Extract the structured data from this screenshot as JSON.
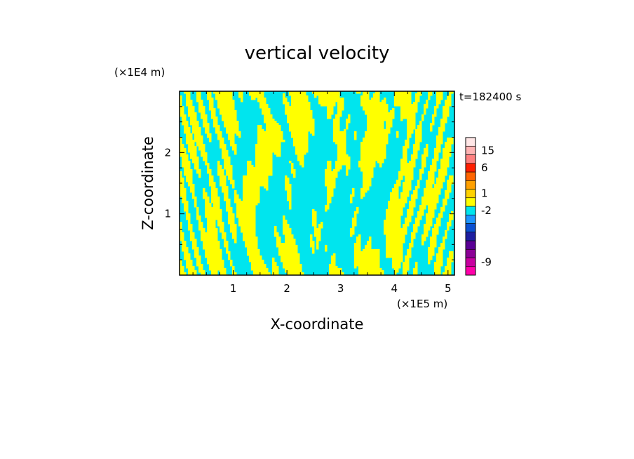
{
  "chart_data": {
    "type": "heatmap",
    "title": "vertical velocity",
    "xlabel": "X-coordinate",
    "ylabel": "Z-coordinate",
    "x_unit": "(×1E5 m)",
    "y_unit": "(×1E4 m)",
    "time_label": "t=182400 s",
    "xlim": [
      0,
      5.12
    ],
    "ylim": [
      0,
      3.0
    ],
    "x_ticks": [
      1,
      2,
      3,
      4,
      5
    ],
    "y_ticks": [
      1,
      2
    ],
    "field_colors": {
      "positive": "#ffff00",
      "negative": "#00e5ee"
    },
    "colorbar": {
      "levels": [
        {
          "color": "#ff00aa"
        },
        {
          "color": "#c800a0"
        },
        {
          "color": "#8c0096"
        },
        {
          "color": "#5a0096"
        },
        {
          "color": "#1e1ea0"
        },
        {
          "color": "#0a50d2"
        },
        {
          "color": "#1e96ff"
        },
        {
          "color": "#00e5ee"
        },
        {
          "color": "#ffff00"
        },
        {
          "color": "#ffd200"
        },
        {
          "color": "#ffa000"
        },
        {
          "color": "#ff6400"
        },
        {
          "color": "#ff1e00"
        },
        {
          "color": "#ff8080"
        },
        {
          "color": "#ffb4b4"
        },
        {
          "color": "#ffe6e6"
        }
      ],
      "tick_labels": [
        {
          "label": "-9",
          "level_index": 1
        },
        {
          "label": "-2",
          "level_index": 7
        },
        {
          "label": "1",
          "level_index": 9
        },
        {
          "label": "6",
          "level_index": 12
        },
        {
          "label": "15",
          "level_index": 14
        }
      ]
    }
  }
}
